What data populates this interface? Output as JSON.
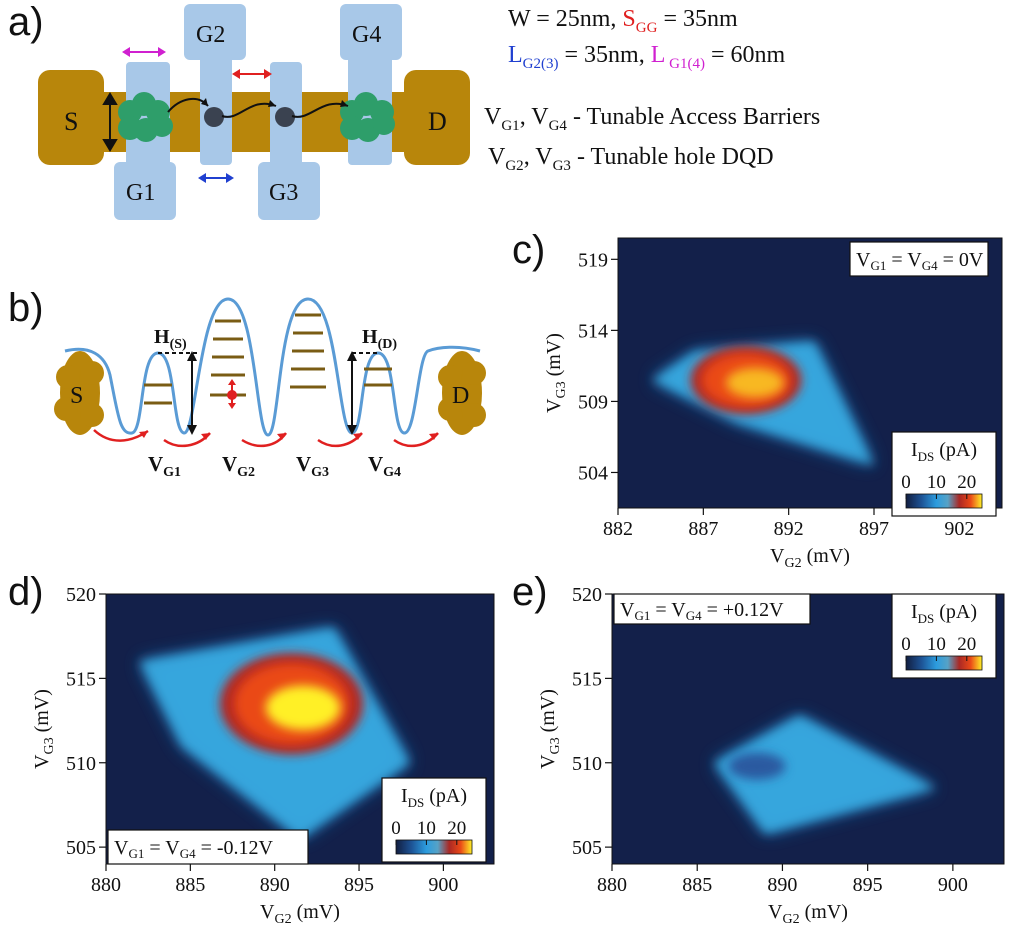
{
  "panels": {
    "a": "a)",
    "b": "b)",
    "c": "c)",
    "d": "d)",
    "e": "e)"
  },
  "device": {
    "source": "S",
    "drain": "D",
    "gates": [
      "G1",
      "G2",
      "G3",
      "G4"
    ],
    "specs": {
      "line1": {
        "w": "W = 25nm, ",
        "s_label": "S",
        "s_sub": "GG",
        "s_val": " = 35nm"
      },
      "line2": {
        "l_a": "L",
        "l_a_sub": "G2(3)",
        "l_a_val": " = 35nm, ",
        "l_b": "L",
        "l_b_sub": " G1(4)",
        "l_b_val": " = 60nm"
      },
      "line3": {
        "v1": "V",
        "v1_sub": "G1",
        "mid": ", V",
        "v4_sub": "G4",
        "desc": " - Tunable Access Barriers"
      },
      "line4": {
        "v2": "V",
        "v2_sub": "G2",
        "mid": ", V",
        "v3_sub": "G3",
        "desc": " - Tunable hole DQD"
      }
    },
    "colors": {
      "channel": "#b8860b",
      "gate": "#a8c8e8",
      "dot": "#2e8b57",
      "hole": "#3a4250",
      "magenta": "#d020d0",
      "red": "#e02020",
      "blue": "#2040d0"
    }
  },
  "band_diagram": {
    "source": "S",
    "drain": "D",
    "barrier_labels": {
      "hs": "H",
      "hs_sub": "(S)",
      "hd": "H",
      "hd_sub": "(D)"
    },
    "gate_labels": [
      {
        "v": "V",
        "sub": "G1"
      },
      {
        "v": "V",
        "sub": "G2"
      },
      {
        "v": "V",
        "sub": "G3"
      },
      {
        "v": "V",
        "sub": "G4"
      }
    ]
  },
  "chart_data": [
    {
      "id": "c",
      "type": "heatmap",
      "xlabel": "V",
      "xlabel_sub": "G2",
      "xlabel_unit": " (mV)",
      "ylabel": "V",
      "ylabel_sub": "G3",
      "ylabel_unit": " (mV)",
      "xticks": [
        882,
        887,
        892,
        897,
        902
      ],
      "yticks": [
        504,
        509,
        514,
        519
      ],
      "xlim": [
        882,
        904.5
      ],
      "ylim": [
        501.5,
        520.5
      ],
      "condition": "V",
      "cond_sub1": "G1",
      "cond_mid": " = V",
      "cond_sub2": "G4",
      "cond_val": " = 0V",
      "colorbar": {
        "label": "I",
        "label_sub": "DS",
        "unit": " (pA)",
        "ticks": [
          0,
          10,
          20
        ]
      }
    },
    {
      "id": "d",
      "type": "heatmap",
      "xlabel": "V",
      "xlabel_sub": "G2",
      "xlabel_unit": " (mV)",
      "ylabel": "V",
      "ylabel_sub": "G3",
      "ylabel_unit": " (mV)",
      "xticks": [
        880,
        885,
        890,
        895,
        900
      ],
      "yticks": [
        505,
        510,
        515,
        520
      ],
      "xlim": [
        880,
        903
      ],
      "ylim": [
        504,
        520
      ],
      "condition": "V",
      "cond_sub1": "G1",
      "cond_mid": " = V",
      "cond_sub2": "G4",
      "cond_val": " = -0.12V",
      "colorbar": {
        "label": "I",
        "label_sub": "DS",
        "unit": " (pA)",
        "ticks": [
          0,
          10,
          20
        ]
      }
    },
    {
      "id": "e",
      "type": "heatmap",
      "xlabel": "V",
      "xlabel_sub": "G2",
      "xlabel_unit": " (mV)",
      "ylabel": "V",
      "ylabel_sub": "G3",
      "ylabel_unit": " (mV)",
      "xticks": [
        880,
        885,
        890,
        895,
        900
      ],
      "yticks": [
        505,
        510,
        515,
        520
      ],
      "xlim": [
        880,
        903
      ],
      "ylim": [
        504,
        520
      ],
      "condition": "V",
      "cond_sub1": "G1",
      "cond_mid": " = V",
      "cond_sub2": "G4",
      "cond_val": " = +0.12V",
      "colorbar": {
        "label": "I",
        "label_sub": "DS",
        "unit": " (pA)",
        "ticks": [
          0,
          10,
          20
        ]
      }
    }
  ]
}
